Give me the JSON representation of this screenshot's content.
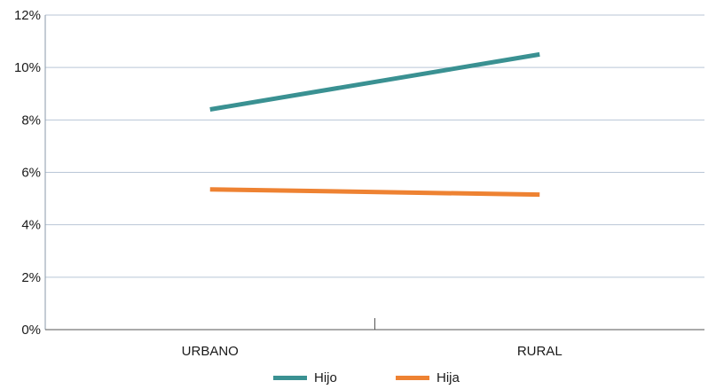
{
  "chart_data": {
    "type": "line",
    "categories": [
      "URBANO",
      "RURAL"
    ],
    "series": [
      {
        "name": "Hijo",
        "color": "#3a9192",
        "values": [
          8.4,
          10.5
        ]
      },
      {
        "name": "Hija",
        "color": "#ee8232",
        "values": [
          5.35,
          5.15
        ]
      }
    ],
    "yticks": [
      "0%",
      "2%",
      "4%",
      "6%",
      "8%",
      "10%",
      "12%"
    ],
    "ylim": [
      0,
      12
    ],
    "grid": true,
    "legend_position": "bottom"
  }
}
